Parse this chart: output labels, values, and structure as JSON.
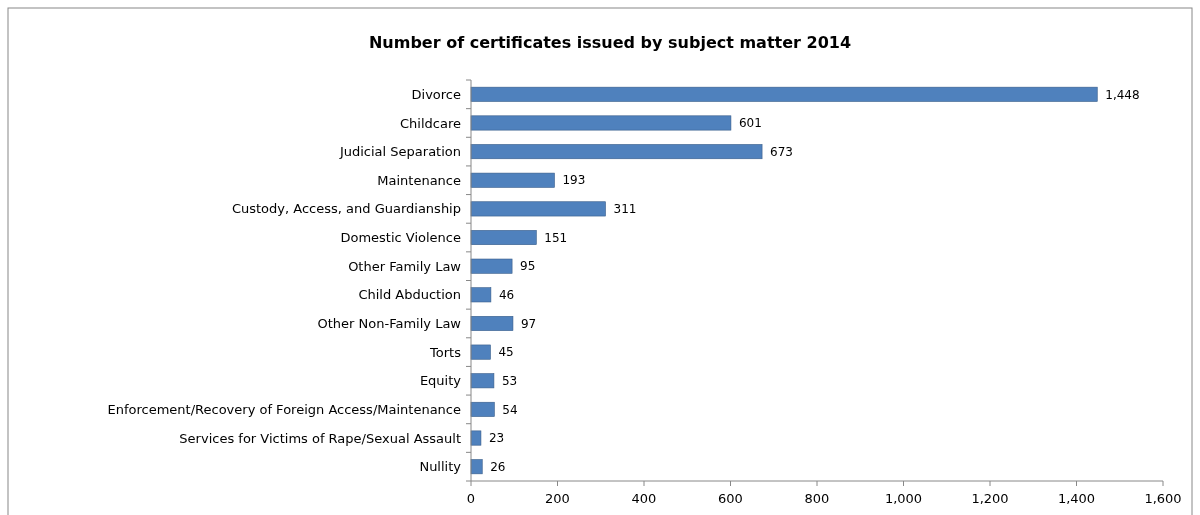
{
  "chart_data": {
    "type": "bar",
    "orientation": "horizontal",
    "title": "Number of certificates issued by subject matter 2014",
    "categories": [
      "Divorce",
      "Childcare",
      "Judicial Separation",
      "Maintenance",
      "Custody, Access, and Guardianship",
      "Domestic Violence",
      "Other Family Law",
      "Child Abduction",
      "Other Non-Family Law",
      "Torts",
      "Equity",
      "Enforcement/Recovery of Foreign Access/Maintenance",
      "Services for Victims of Rape/Sexual Assault",
      "Nullity"
    ],
    "values": [
      1448,
      601,
      673,
      193,
      311,
      151,
      95,
      46,
      97,
      45,
      53,
      54,
      23,
      26
    ],
    "value_labels": [
      "1,448",
      "601",
      "673",
      "193",
      "311",
      "151",
      "95",
      "46",
      "97",
      "45",
      "53",
      "54",
      "23",
      "26"
    ],
    "color": "#4f81bd",
    "grid": false,
    "xlim": [
      0,
      1600
    ],
    "xticks": [
      0,
      200,
      400,
      600,
      800,
      {
        "value": 1000,
        "label": "1,000"
      },
      {
        "value": 1200,
        "label": "1,200"
      },
      {
        "value": 1400,
        "label": "1,400"
      },
      {
        "value": 1600,
        "label": "1,600"
      }
    ]
  }
}
